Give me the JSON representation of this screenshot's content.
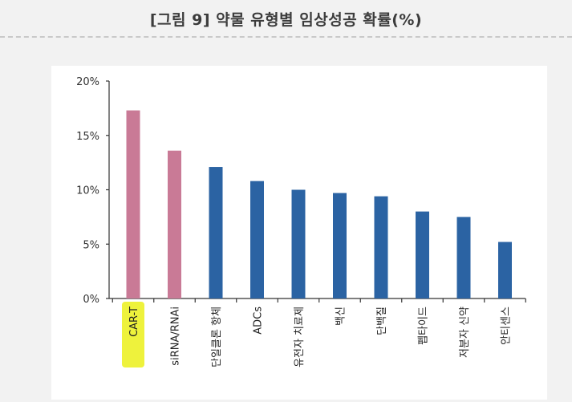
{
  "title": "[그림 9] 약물 유형별 임상성공 확률(%)",
  "chart_data": {
    "type": "bar",
    "categories": [
      "CAR-T",
      "siRNA/RNAi",
      "단일클론 항체",
      "ADCs",
      "유전자 치료제",
      "백신",
      "단백질",
      "펩타이드",
      "저분자 신약",
      "안티센스"
    ],
    "values": [
      17.3,
      13.6,
      12.1,
      10.8,
      10.0,
      9.7,
      9.4,
      8.0,
      7.5,
      5.2
    ],
    "yticks": [
      "0%",
      "5%",
      "10%",
      "15%",
      "20%"
    ],
    "ylim": [
      0,
      20
    ],
    "grid": false,
    "colors": {
      "highlight": "#c97a96",
      "default": "#2b63a3",
      "label_highlight": "#eef23c"
    },
    "highlight_bars": [
      0,
      1
    ],
    "highlight_label": 0
  }
}
